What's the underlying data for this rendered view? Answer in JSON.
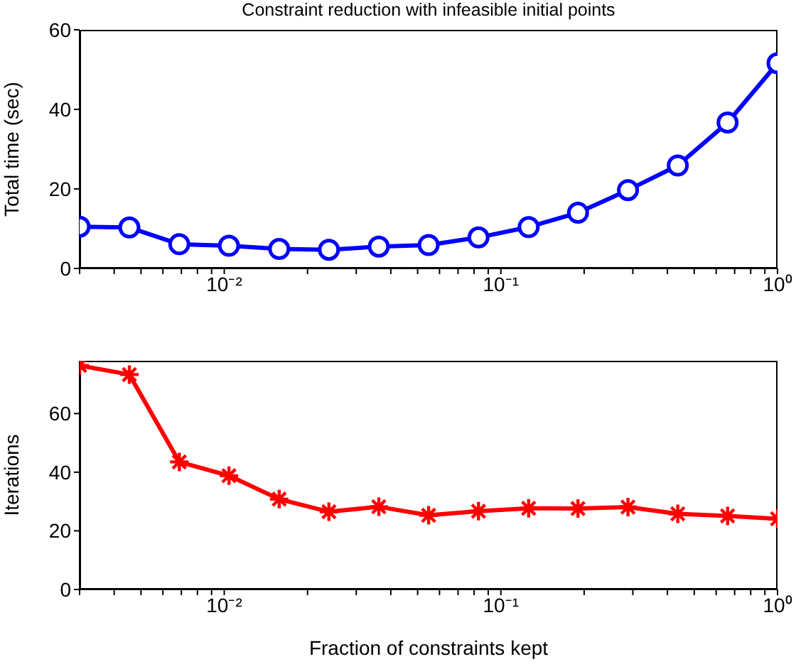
{
  "chart_data": [
    {
      "type": "line",
      "title": "Constraint reduction with infeasible initial points",
      "ylabel": "Total time (sec)",
      "log": "x",
      "marker": "circle",
      "line_style": "solid",
      "x": [
        0.003,
        0.00454,
        0.00688,
        0.0104,
        0.0158,
        0.0239,
        0.0362,
        0.0548,
        0.083,
        0.126,
        0.19,
        0.288,
        0.436,
        0.66,
        1
      ],
      "series": [
        {
          "color": "#0000ff",
          "values": [
            10.5,
            10.3,
            6.1,
            5.7,
            4.9,
            4.7,
            5.5,
            5.9,
            7.8,
            10.4,
            14,
            19.7,
            25.9,
            36.7,
            51.6
          ]
        }
      ],
      "xlim": [
        0.003,
        1
      ],
      "ylim": [
        0,
        60
      ],
      "yticks": [
        0,
        20,
        40,
        60
      ],
      "xticks": [
        {
          "value": 0.003,
          "label": null
        },
        {
          "value": 0.004,
          "label": null
        },
        {
          "value": 0.005,
          "label": null
        },
        {
          "value": 0.006,
          "label": null
        },
        {
          "value": 0.007,
          "label": null
        },
        {
          "value": 0.008,
          "label": null
        },
        {
          "value": 0.009,
          "label": null
        },
        {
          "value": 0.01,
          "label": "10⁻²"
        },
        {
          "value": 0.02,
          "label": null
        },
        {
          "value": 0.03,
          "label": null
        },
        {
          "value": 0.04,
          "label": null
        },
        {
          "value": 0.05,
          "label": null
        },
        {
          "value": 0.06,
          "label": null
        },
        {
          "value": 0.07,
          "label": null
        },
        {
          "value": 0.08,
          "label": null
        },
        {
          "value": 0.09,
          "label": null
        },
        {
          "value": 0.1,
          "label": "10⁻¹"
        },
        {
          "value": 0.2,
          "label": null
        },
        {
          "value": 0.3,
          "label": null
        },
        {
          "value": 0.4,
          "label": null
        },
        {
          "value": 0.5,
          "label": null
        },
        {
          "value": 0.6,
          "label": null
        },
        {
          "value": 0.7,
          "label": null
        },
        {
          "value": 0.8,
          "label": null
        },
        {
          "value": 0.9,
          "label": null
        },
        {
          "value": 1,
          "label": "10⁰"
        }
      ]
    },
    {
      "type": "line",
      "xlabel": "Fraction of constraints kept",
      "ylabel": "Iterations",
      "log": "x",
      "marker": "cross",
      "line_style": "solid",
      "x": [
        0.003,
        0.00454,
        0.00688,
        0.0104,
        0.0158,
        0.0239,
        0.0362,
        0.0548,
        0.083,
        0.126,
        0.19,
        0.288,
        0.436,
        0.66,
        1
      ],
      "series": [
        {
          "color": "#ff0000",
          "values": [
            76.4,
            73.3,
            43.5,
            38.8,
            30.8,
            26.5,
            28.2,
            25.3,
            26.7,
            27.7,
            27.6,
            28.1,
            25.8,
            25.1,
            24.1
          ]
        }
      ],
      "xlim": [
        0.003,
        1
      ],
      "ylim": [
        0,
        78
      ],
      "yticks": [
        0,
        20,
        40,
        60
      ],
      "xticks": [
        {
          "value": 0.003,
          "label": null
        },
        {
          "value": 0.004,
          "label": null
        },
        {
          "value": 0.005,
          "label": null
        },
        {
          "value": 0.006,
          "label": null
        },
        {
          "value": 0.007,
          "label": null
        },
        {
          "value": 0.008,
          "label": null
        },
        {
          "value": 0.009,
          "label": null
        },
        {
          "value": 0.01,
          "label": "10⁻²"
        },
        {
          "value": 0.02,
          "label": null
        },
        {
          "value": 0.03,
          "label": null
        },
        {
          "value": 0.04,
          "label": null
        },
        {
          "value": 0.05,
          "label": null
        },
        {
          "value": 0.06,
          "label": null
        },
        {
          "value": 0.07,
          "label": null
        },
        {
          "value": 0.08,
          "label": null
        },
        {
          "value": 0.09,
          "label": null
        },
        {
          "value": 0.1,
          "label": "10⁻¹"
        },
        {
          "value": 0.2,
          "label": null
        },
        {
          "value": 0.3,
          "label": null
        },
        {
          "value": 0.4,
          "label": null
        },
        {
          "value": 0.5,
          "label": null
        },
        {
          "value": 0.6,
          "label": null
        },
        {
          "value": 0.7,
          "label": null
        },
        {
          "value": 0.8,
          "label": null
        },
        {
          "value": 0.9,
          "label": null
        },
        {
          "value": 1,
          "label": "10⁰"
        }
      ]
    }
  ]
}
